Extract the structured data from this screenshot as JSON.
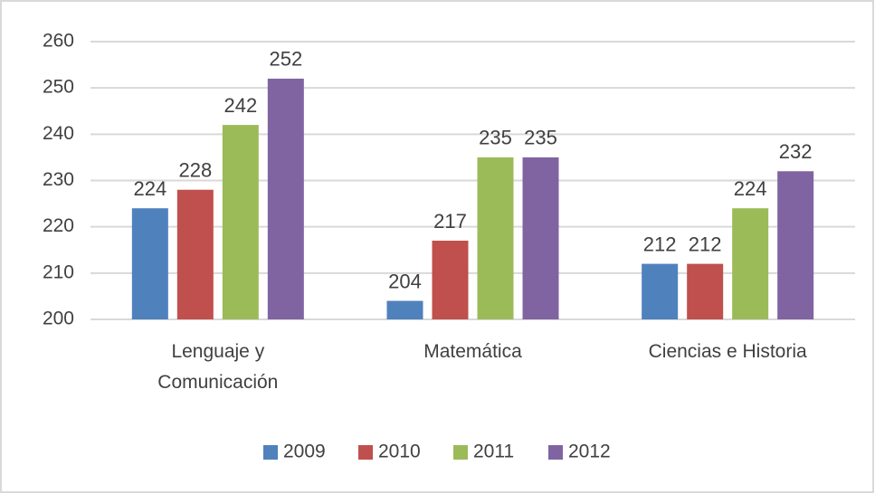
{
  "chart_data": {
    "type": "bar",
    "categories": [
      "Lenguaje y Comunicación",
      "Matemática",
      "Ciencias e Historia"
    ],
    "series": [
      {
        "name": "2009",
        "color": "#4f81bd",
        "values": [
          224,
          204,
          212
        ]
      },
      {
        "name": "2010",
        "color": "#c0504d",
        "values": [
          228,
          217,
          212
        ]
      },
      {
        "name": "2011",
        "color": "#9bbb59",
        "values": [
          242,
          235,
          224
        ]
      },
      {
        "name": "2012",
        "color": "#8064a2",
        "values": [
          252,
          235,
          232
        ]
      }
    ],
    "ylim": [
      200,
      260
    ],
    "yticks": [
      200,
      210,
      220,
      230,
      240,
      250,
      260
    ],
    "grid": true,
    "legend": "bottom"
  }
}
